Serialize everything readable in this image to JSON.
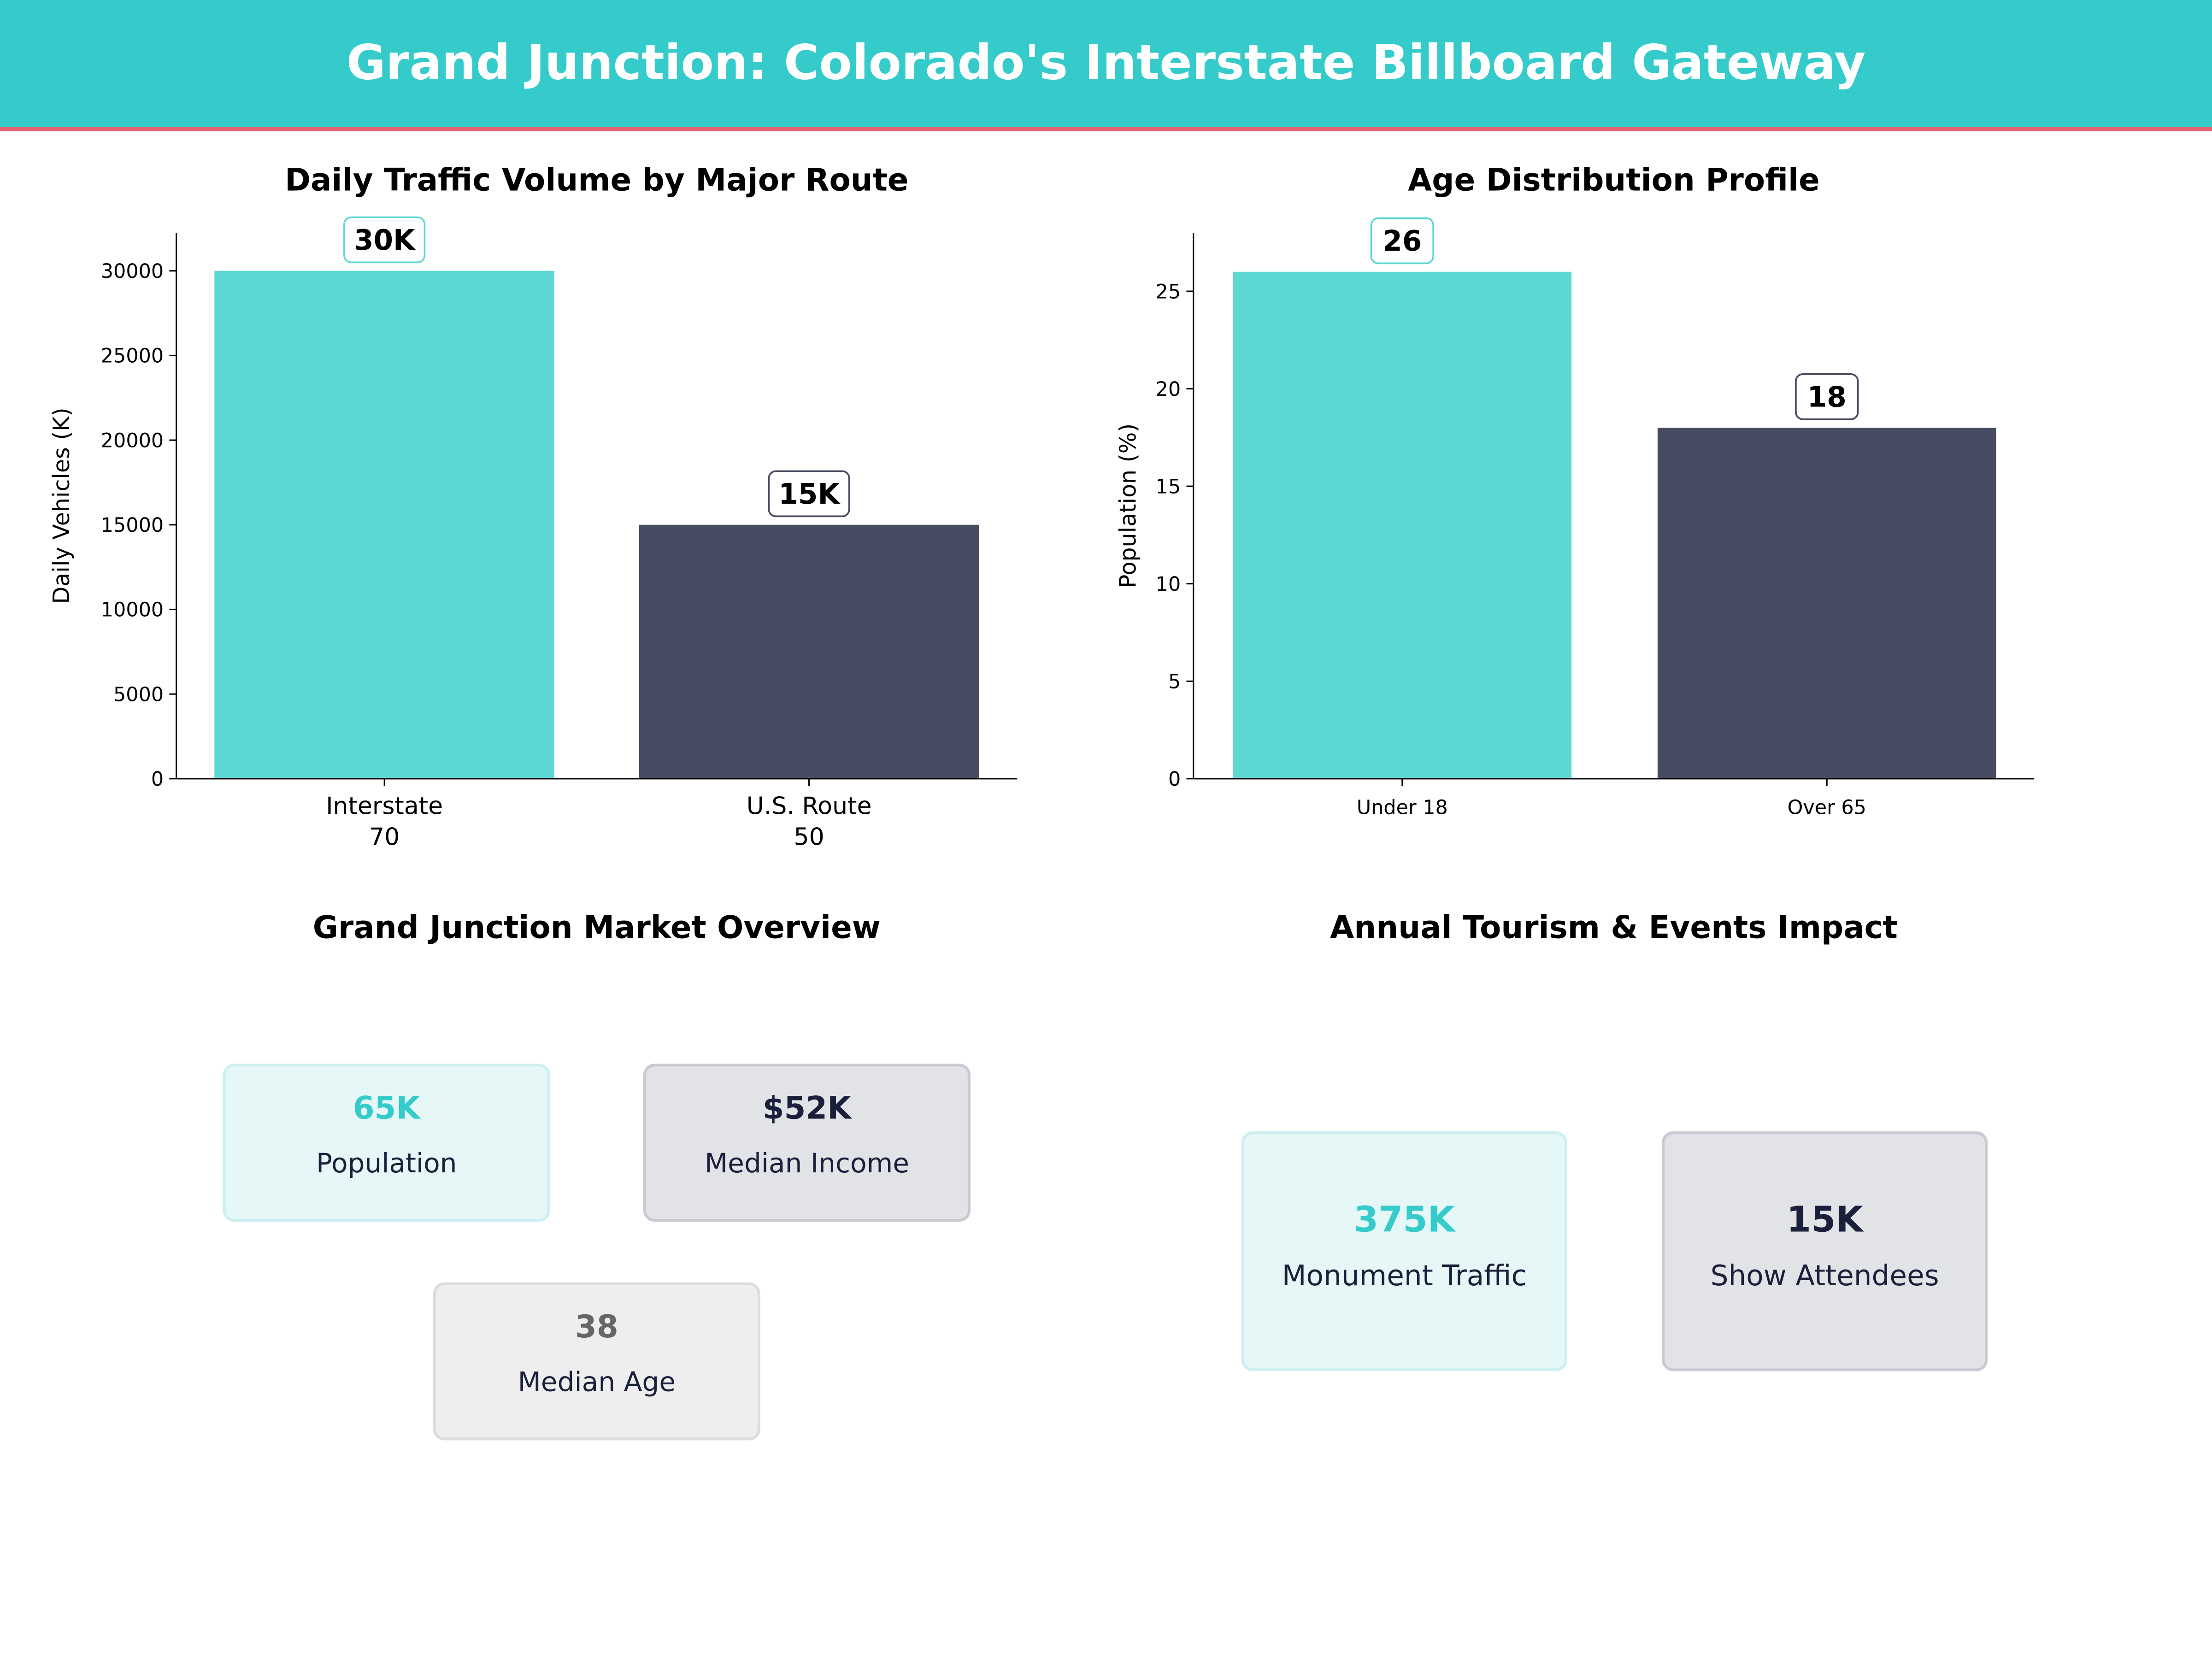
{
  "header": {
    "title": "Grand Junction: Colorado's Interstate Billboard Gateway"
  },
  "colors": {
    "teal": "#35CBCB",
    "bar_teal": "#5DD7D4",
    "bar_dark": "#464B61",
    "accent_red": "#E8636F",
    "navy": "#1A1F3A"
  },
  "chart_data": [
    {
      "type": "bar",
      "title": "Daily Traffic Volume by Major Route",
      "ylabel": "Daily Vehicles (K)",
      "xlabel": "",
      "categories": [
        "Interstate\n70",
        "U.S. Route\n50"
      ],
      "category_lines": [
        [
          "Interstate",
          "70"
        ],
        [
          "U.S. Route",
          "50"
        ]
      ],
      "values": [
        30000,
        15000
      ],
      "data_labels": [
        "30K",
        "15K"
      ],
      "ylim": [
        0,
        32250
      ],
      "yticks": [
        0,
        5000,
        10000,
        15000,
        20000,
        25000,
        30000
      ],
      "grid": false
    },
    {
      "type": "bar",
      "title": "Age Distribution Profile",
      "ylabel": "Population (%)",
      "xlabel": "",
      "categories": [
        "Under 18",
        "Over 65"
      ],
      "category_lines": [
        [
          "Under 18"
        ],
        [
          "Over 65"
        ]
      ],
      "values": [
        26,
        18
      ],
      "data_labels": [
        "26",
        "18"
      ],
      "ylim": [
        0,
        28
      ],
      "yticks": [
        0,
        5,
        10,
        15,
        20,
        25
      ],
      "grid": false
    }
  ],
  "market": {
    "title": "Grand Junction Market Overview",
    "cards": [
      {
        "value": "65K",
        "label": "Population"
      },
      {
        "value": "$52K",
        "label": "Median Income"
      },
      {
        "value": "38",
        "label": "Median Age"
      }
    ]
  },
  "tourism": {
    "title": "Annual Tourism & Events Impact",
    "cards": [
      {
        "value": "375K",
        "label": "Monument Traffic"
      },
      {
        "value": "15K",
        "label": "Show Attendees"
      }
    ]
  }
}
